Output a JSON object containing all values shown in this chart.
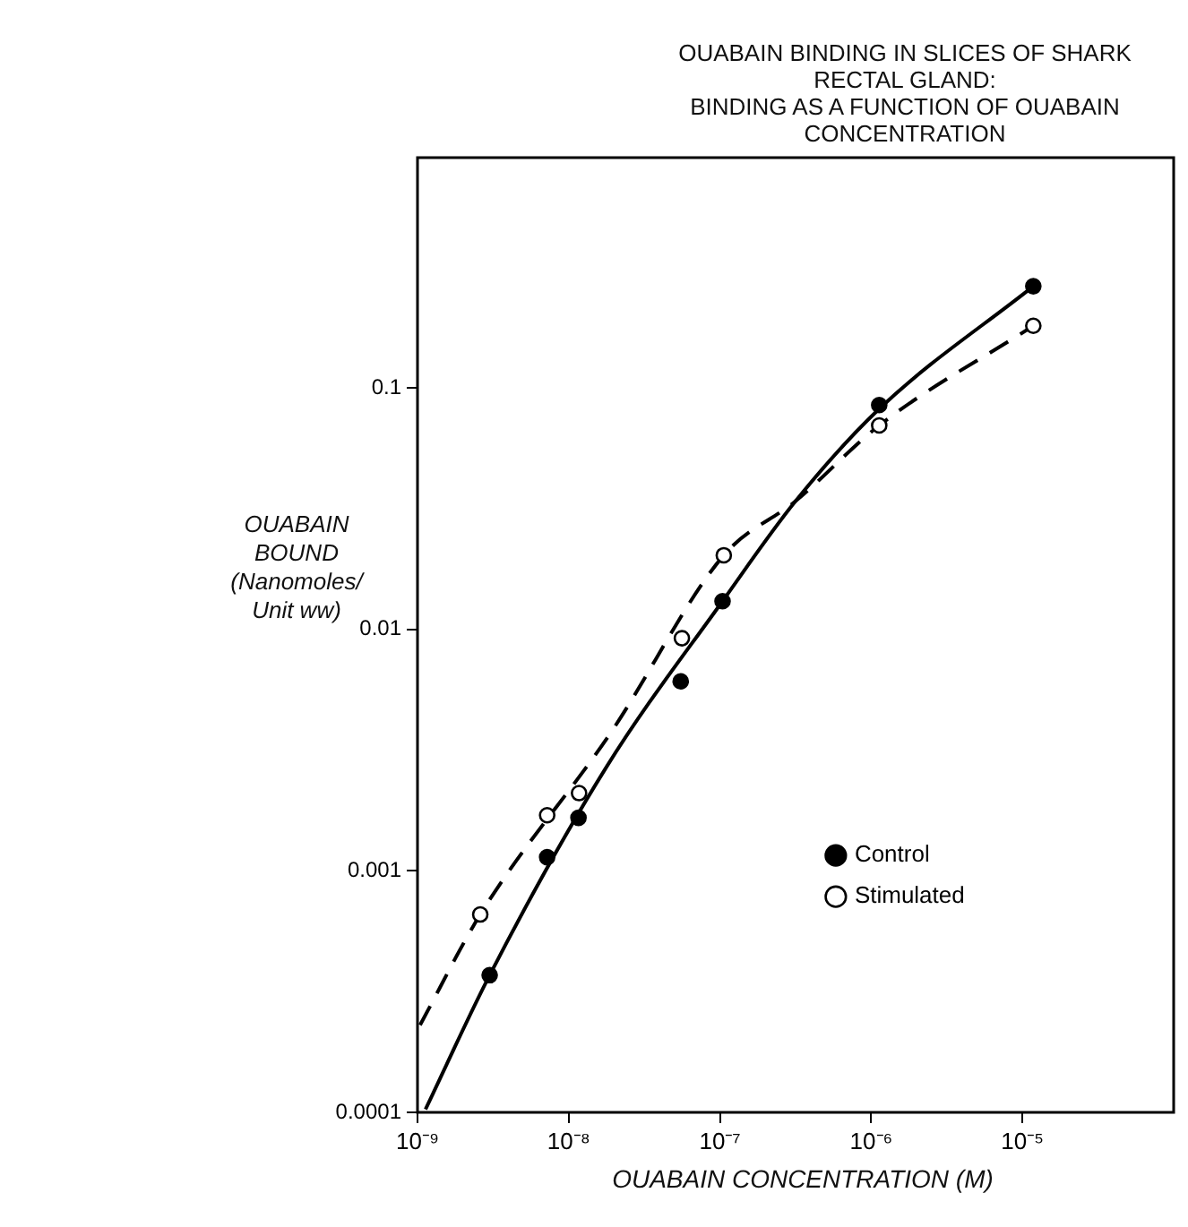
{
  "chart_data": {
    "type": "scatter",
    "title": "OUABAIN BINDING IN SLICES OF SHARK RECTAL GLAND:",
    "subtitle": "BINDING AS A FUNCTION OF OUABAIN CONCENTRATION",
    "xlabel": "OUABAIN CONCENTRATION (M)",
    "ylabel": "OUABAIN BOUND (Nanomoles/ Unit ww)",
    "log": "xy",
    "grid": false,
    "legend": "bottom right",
    "xlim": [
      1e-09,
      0.0001
    ],
    "ylim": [
      0.0001,
      0.9
    ],
    "xticks": [
      {
        "value": 1e-09,
        "label": "10⁻⁹"
      },
      {
        "value": 1e-08,
        "label": "10⁻⁸"
      },
      {
        "value": 1e-07,
        "label": "10⁻⁷"
      },
      {
        "value": 1e-06,
        "label": "10⁻⁶"
      },
      {
        "value": 1e-05,
        "label": "10⁻⁵"
      }
    ],
    "yticks": [
      0.0001,
      0.001,
      0.01,
      0.1
    ],
    "series": [
      {
        "name": "Control",
        "marker": "circle",
        "color": "#000000",
        "x": [
          3e-09,
          7.2e-09,
          1.16e-08,
          5.5e-08,
          1.04e-07,
          1.13e-06,
          1.18e-05
        ],
        "values": [
          0.00037,
          0.00114,
          0.00166,
          0.0061,
          0.0131,
          0.085,
          0.264
        ]
      },
      {
        "name": "Stimulated",
        "marker": "circle",
        "color": "#ffffff",
        "x": [
          2.6e-09,
          7.2e-09,
          1.17e-08,
          5.6e-08,
          1.06e-07,
          1.13e-06,
          1.18e-05
        ],
        "values": [
          0.00066,
          0.0017,
          0.0021,
          0.0092,
          0.0203,
          0.07,
          0.181
        ]
      },
      {
        "type": "line",
        "marker": "none",
        "line_style": "solid",
        "color": "#000000",
        "x": [
          1.13e-09,
          3e-09,
          1.78e-08,
          1.04e-07,
          3.16e-07,
          1.13e-06,
          1.18e-05
        ],
        "values": [
          0.000103,
          0.00037,
          0.0027,
          0.0131,
          0.034,
          0.082,
          0.264
        ]
      },
      {
        "type": "line",
        "marker": "none",
        "line_style": "dashed",
        "color": "#000000",
        "x": [
          1.04e-09,
          2.6e-09,
          1.93e-08,
          1.06e-07,
          3.16e-07,
          1.13e-06,
          1.18e-05
        ],
        "values": [
          0.00023,
          0.00066,
          0.0038,
          0.0203,
          0.034,
          0.07,
          0.181
        ]
      }
    ]
  }
}
